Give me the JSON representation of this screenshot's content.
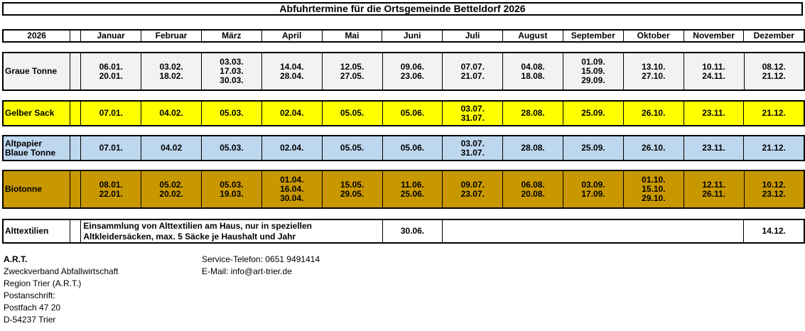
{
  "title": "Abfuhrtermine für die Ortsgemeinde Betteldorf 2026",
  "header": {
    "year": "2026",
    "months": [
      "Januar",
      "Februar",
      "März",
      "April",
      "Mai",
      "Juni",
      "Juli",
      "August",
      "September",
      "Oktober",
      "November",
      "Dezember"
    ]
  },
  "rows": {
    "graue_tonne": {
      "label": "Graue Tonne",
      "dates": [
        [
          "06.01.",
          "20.01."
        ],
        [
          "03.02.",
          "18.02."
        ],
        [
          "03.03.",
          "17.03.",
          "30.03."
        ],
        [
          "14.04.",
          "28.04."
        ],
        [
          "12.05.",
          "27.05."
        ],
        [
          "09.06.",
          "23.06."
        ],
        [
          "07.07.",
          "21.07."
        ],
        [
          "04.08.",
          "18.08."
        ],
        [
          "01.09.",
          "15.09.",
          "29.09."
        ],
        [
          "13.10.",
          "27.10."
        ],
        [
          "10.11.",
          "24.11."
        ],
        [
          "08.12.",
          "21.12."
        ]
      ]
    },
    "gelber_sack": {
      "label": "Gelber Sack",
      "dates": [
        [
          "07.01."
        ],
        [
          "04.02."
        ],
        [
          "05.03."
        ],
        [
          "02.04."
        ],
        [
          "05.05."
        ],
        [
          "05.06."
        ],
        [
          "03.07.",
          "31.07."
        ],
        [
          "28.08."
        ],
        [
          "25.09."
        ],
        [
          "26.10."
        ],
        [
          "23.11."
        ],
        [
          "21.12."
        ]
      ]
    },
    "altpapier": {
      "label_line1": "Altpapier",
      "label_line2": "Blaue Tonne",
      "dates": [
        [
          "07.01."
        ],
        [
          "04.02"
        ],
        [
          "05.03."
        ],
        [
          "02.04."
        ],
        [
          "05.05."
        ],
        [
          "05.06."
        ],
        [
          "03.07.",
          "31.07."
        ],
        [
          "28.08."
        ],
        [
          "25.09."
        ],
        [
          "26.10."
        ],
        [
          "23.11."
        ],
        [
          "21.12."
        ]
      ]
    },
    "biotonne": {
      "label": "Biotonne",
      "dates": [
        [
          "08.01.",
          "22.01."
        ],
        [
          "05.02.",
          "20.02."
        ],
        [
          "05.03.",
          "19.03."
        ],
        [
          "01.04.",
          "16.04.",
          "30.04."
        ],
        [
          "15.05.",
          "29.05."
        ],
        [
          "11.06.",
          "25.06."
        ],
        [
          "09.07.",
          "23.07."
        ],
        [
          "06.08.",
          "20.08."
        ],
        [
          "03.09.",
          "17.09."
        ],
        [
          "01.10.",
          "15.10.",
          "29.10."
        ],
        [
          "12.11.",
          "26.11."
        ],
        [
          "10.12.",
          "23.12."
        ]
      ]
    },
    "alttextilien": {
      "label": "Alttextilien",
      "description_line1": "Einsammlung von Alttextilien am Haus, nur in speziellen",
      "description_line2": "Altkleidersäcken, max. 5 Säcke je Haushalt und Jahr",
      "date_juni": "30.06.",
      "date_dezember": "14.12."
    }
  },
  "footer": {
    "org_name": "A.R.T.",
    "org_line2": "Zweckverband Abfallwirtschaft",
    "org_line3": "Region Trier (A.R.T.)",
    "org_line4": "Postanschrift:",
    "org_line5": "Postfach 47 20",
    "org_line6": "D-54237 Trier",
    "phone": "Service-Telefon: 0651 9491414",
    "email": "E-Mail: info@art-trier.de"
  },
  "colors": {
    "graue_tonne": "#f2f2f2",
    "gelber_sack": "#ffff00",
    "altpapier": "#bdd7ee",
    "biotonne": "#c89800"
  }
}
